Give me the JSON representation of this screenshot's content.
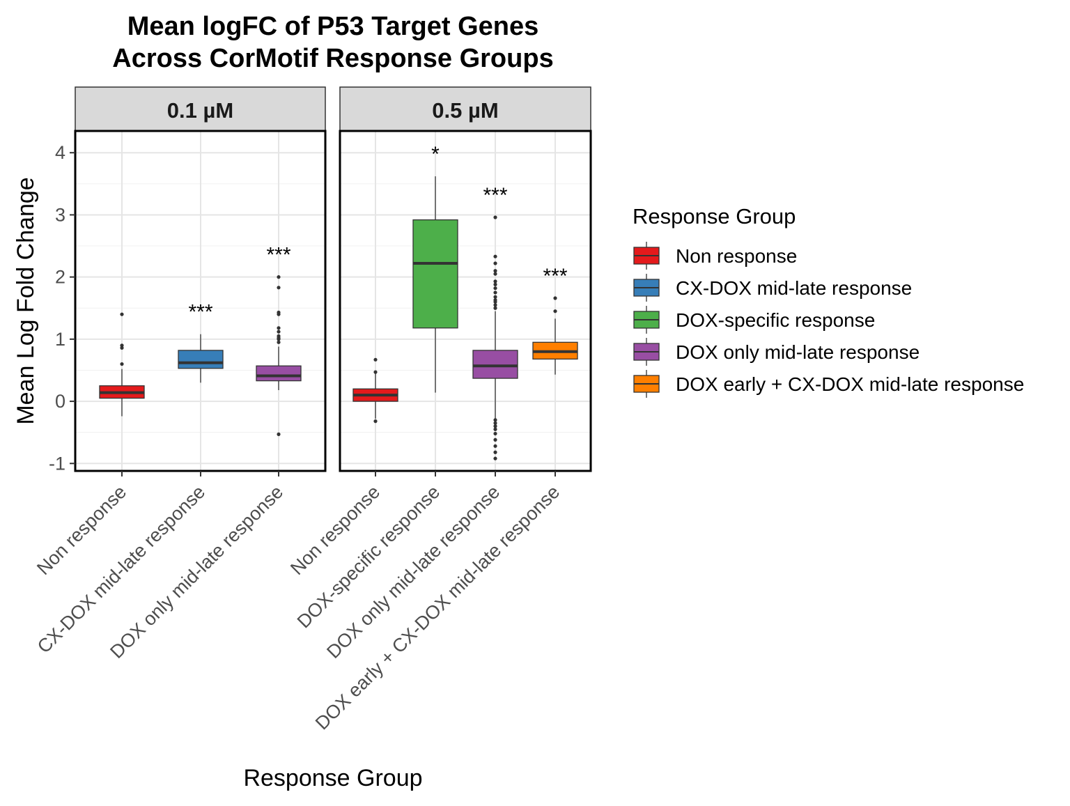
{
  "chart_data": {
    "type": "boxplot",
    "title_lines": [
      "Mean logFC of P53 Target Genes",
      "Across CorMotif Response Groups"
    ],
    "xlabel": "Response Group",
    "ylabel": "Mean Log Fold Change",
    "ylim": [
      -1.12,
      4.35
    ],
    "yticks": [
      -1,
      0,
      1,
      2,
      3,
      4
    ],
    "ytick_labels": [
      "-1",
      "0",
      "1",
      "2",
      "3",
      "4"
    ],
    "grid": true,
    "legend": {
      "title": "Response Group",
      "position": "right",
      "entries": [
        {
          "label": "Non response",
          "color": "#E41A1C"
        },
        {
          "label": "CX-DOX mid-late response",
          "color": "#377EB8"
        },
        {
          "label": "DOX-specific response",
          "color": "#4DAF4A"
        },
        {
          "label": "DOX only mid-late response",
          "color": "#984EA3"
        },
        {
          "label": "DOX early + CX-DOX mid-late response",
          "color": "#FF7F00"
        }
      ]
    },
    "panels": [
      {
        "strip": "0.1 µM",
        "categories": [
          "Non response",
          "CX-DOX mid-late response",
          "DOX only mid-late response"
        ],
        "boxes": [
          {
            "group": "Non response",
            "color": "#E41A1C",
            "whisker_low": -0.24,
            "q1": 0.05,
            "median": 0.14,
            "q3": 0.25,
            "whisker_high": 0.52,
            "outliers": [
              0.6,
              0.86,
              0.9,
              1.4
            ],
            "annotation": ""
          },
          {
            "group": "CX-DOX mid-late response",
            "color": "#377EB8",
            "whisker_low": 0.3,
            "q1": 0.53,
            "median": 0.62,
            "q3": 0.82,
            "whisker_high": 1.08,
            "outliers": [],
            "annotation": "***"
          },
          {
            "group": "DOX only mid-late response",
            "color": "#984EA3",
            "whisker_low": 0.18,
            "q1": 0.33,
            "median": 0.41,
            "q3": 0.57,
            "whisker_high": 0.88,
            "outliers": [
              -0.53,
              0.95,
              1.0,
              1.02,
              1.05,
              1.12,
              1.18,
              1.4,
              1.43,
              1.83,
              2.0
            ],
            "annotation": "***"
          }
        ]
      },
      {
        "strip": "0.5 µM",
        "categories": [
          "Non response",
          "DOX-specific response",
          "DOX only mid-late response",
          "DOX early + CX-DOX mid-late response"
        ],
        "boxes": [
          {
            "group": "Non response",
            "color": "#E41A1C",
            "whisker_low": -0.28,
            "q1": 0.0,
            "median": 0.1,
            "q3": 0.2,
            "whisker_high": 0.45,
            "outliers": [
              -0.32,
              0.47,
              0.67
            ],
            "annotation": ""
          },
          {
            "group": "DOX-specific response",
            "color": "#4DAF4A",
            "whisker_low": 0.14,
            "q1": 1.18,
            "median": 2.22,
            "q3": 2.92,
            "whisker_high": 3.62,
            "outliers": [],
            "annotation": "*"
          },
          {
            "group": "DOX only mid-late response",
            "color": "#984EA3",
            "whisker_low": -0.28,
            "q1": 0.37,
            "median": 0.57,
            "q3": 0.82,
            "whisker_high": 1.45,
            "outliers": [
              -0.92,
              -0.82,
              -0.72,
              -0.62,
              -0.52,
              -0.45,
              -0.4,
              -0.35,
              -0.3,
              1.5,
              1.55,
              1.6,
              1.63,
              1.68,
              1.75,
              1.82,
              1.88,
              1.93,
              2.05,
              2.1,
              2.22,
              2.33,
              2.96
            ],
            "annotation": "***"
          },
          {
            "group": "DOX early + CX-DOX mid-late response",
            "color": "#FF7F00",
            "whisker_low": 0.43,
            "q1": 0.68,
            "median": 0.8,
            "q3": 0.95,
            "whisker_high": 1.33,
            "outliers": [
              1.45,
              1.66
            ],
            "annotation": "***"
          }
        ]
      }
    ]
  }
}
